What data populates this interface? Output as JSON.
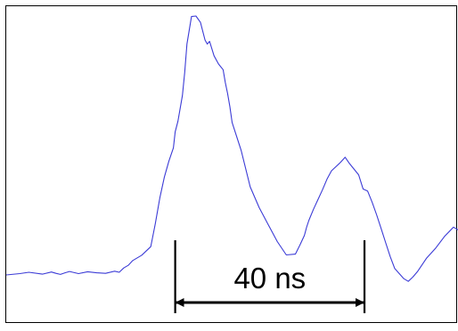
{
  "chart_data": {
    "type": "line",
    "title": "",
    "xlabel": "",
    "ylabel": "",
    "grid": false,
    "legend": "none",
    "series_color": "#3b3bd6",
    "annotation_color": "#000000",
    "border_color": "#000000",
    "xlim": [
      0,
      100
    ],
    "ylim": [
      0,
      100
    ],
    "series": [
      {
        "x": [
          0.0,
          3.0,
          5.0,
          8.0,
          10.0,
          11.0,
          12.0,
          13.0,
          14.0,
          16.0,
          18.0,
          20.0,
          22.0,
          24.0,
          25.0,
          26.0,
          27.0,
          28.0,
          30.0,
          32.0,
          33.0,
          34.0,
          35.0,
          36.0,
          37.0,
          37.4,
          38.0,
          39.0,
          39.5,
          40.0,
          41.0,
          42.0,
          43.0,
          44.0,
          44.5,
          45.0,
          46.0,
          47.0,
          48.0,
          48.5,
          49.0,
          49.5,
          50.0,
          52.0,
          54.0,
          56.0,
          58.0,
          60.0,
          62.0,
          64.0,
          65.0,
          66.0,
          66.5,
          67.0,
          68.0,
          69.0,
          70.0,
          71.0,
          72.0,
          74.0,
          75.0,
          76.0,
          78.0,
          79.0,
          80.0,
          81.0,
          82.0,
          83.0,
          84.0,
          85.0,
          86.0,
          88.0,
          89.0,
          90.0,
          91.0,
          93.0,
          95.0,
          97.0,
          99.0,
          100.0
        ],
        "y": [
          3.0,
          3.5,
          4.0,
          3.3,
          4.1,
          3.6,
          3.2,
          3.8,
          4.3,
          3.5,
          4.2,
          3.8,
          3.6,
          4.4,
          4.0,
          5.6,
          6.6,
          8.4,
          10.4,
          13.6,
          22.2,
          31.9,
          39.6,
          45.6,
          50.6,
          56.6,
          60.6,
          70.2,
          78.9,
          89.5,
          99.8,
          100.0,
          97.6,
          91.0,
          89.5,
          90.5,
          85.1,
          82.0,
          79.9,
          75.0,
          71.0,
          66.0,
          60.1,
          49.7,
          36.0,
          28.2,
          21.8,
          15.5,
          10.5,
          10.8,
          14.2,
          17.8,
          21.0,
          23.5,
          27.6,
          31.2,
          34.9,
          38.9,
          42.0,
          45.2,
          47.1,
          44.7,
          40.5,
          35.2,
          34.4,
          30.2,
          25.5,
          20.3,
          15.0,
          9.9,
          5.4,
          1.6,
          0.6,
          2.2,
          4.2,
          9.2,
          12.9,
          17.4,
          20.9,
          19.9
        ]
      }
    ],
    "annotations": [
      {
        "type": "interval",
        "label": "40 ns",
        "x_start": 37.4,
        "x_end": 79.3
      }
    ]
  }
}
